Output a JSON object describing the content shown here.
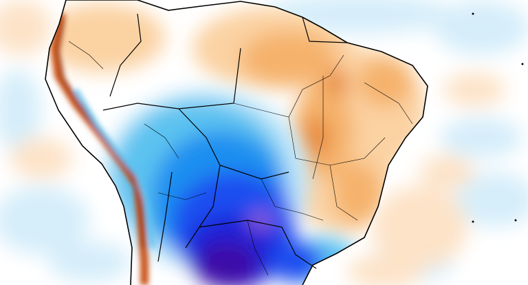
{
  "map": {
    "type": "temperature-anomaly-map",
    "region": "South America",
    "has_text_labels": false,
    "colors": {
      "background": "#ffffff",
      "ocean_light_blue": "#d6eefa",
      "ocean_light_orange": "#fde3c8",
      "warm_light": "#fbd2a2",
      "warm_mid": "#f5b26c",
      "warm_strong": "#e88a3c",
      "warm_intense": "#c9541c",
      "warm_extreme": "#8e2a10",
      "cool_light": "#bfe6fa",
      "cool_mid": "#5cc2f0",
      "cool_strong": "#1e8ff0",
      "cool_deep": "#1a4df0",
      "cool_intense": "#1f20d8",
      "cool_extreme": "#3d10a8",
      "cool_peak": "#8a5ad8",
      "boundary_line": "#000000"
    }
  }
}
